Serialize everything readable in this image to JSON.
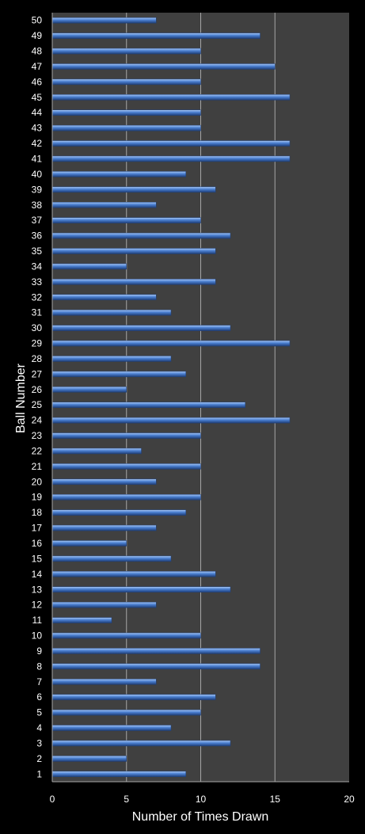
{
  "chart_data": {
    "type": "bar",
    "orientation": "horizontal",
    "categories": [
      "1",
      "2",
      "3",
      "4",
      "5",
      "6",
      "7",
      "8",
      "9",
      "10",
      "11",
      "12",
      "13",
      "14",
      "15",
      "16",
      "17",
      "18",
      "19",
      "20",
      "21",
      "22",
      "23",
      "24",
      "25",
      "26",
      "27",
      "28",
      "29",
      "30",
      "31",
      "32",
      "33",
      "34",
      "35",
      "36",
      "37",
      "38",
      "39",
      "40",
      "41",
      "42",
      "43",
      "44",
      "45",
      "46",
      "47",
      "48",
      "49",
      "50"
    ],
    "values": [
      9,
      5,
      12,
      8,
      10,
      11,
      7,
      14,
      14,
      10,
      4,
      7,
      12,
      11,
      8,
      5,
      7,
      9,
      10,
      7,
      10,
      6,
      10,
      16,
      13,
      5,
      9,
      8,
      16,
      12,
      8,
      7,
      11,
      5,
      11,
      12,
      10,
      7,
      11,
      9,
      16,
      16,
      10,
      10,
      16,
      10,
      15,
      10,
      14,
      7
    ],
    "xlabel": "Number of Times Drawn",
    "ylabel": "Ball Number",
    "xlim": [
      0,
      20
    ],
    "xticks": [
      "0",
      "5",
      "10",
      "15",
      "20"
    ],
    "grid": true,
    "legend": "none",
    "colors": {
      "background": "#000000",
      "plot_area": "#404040",
      "gridline": "#a6a6a6",
      "bar": "#4a7fd0",
      "bar_highlight": "#a9c8f5",
      "bar_shadow": "#1f3f78",
      "text": "#ffffff"
    }
  }
}
